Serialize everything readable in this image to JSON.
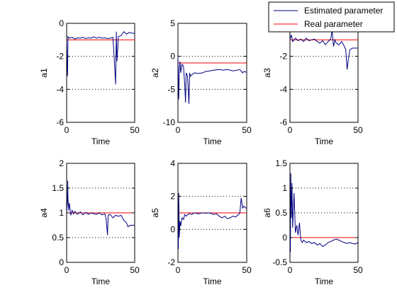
{
  "colors": {
    "estimated": "#000080",
    "real": "#ff0000",
    "grid": "#000000",
    "axes": "#000000"
  },
  "legend": {
    "position": "top-right",
    "items": [
      "Estimated parameter",
      "Real parameter"
    ]
  },
  "chart_data": [
    {
      "type": "line",
      "xlabel": "Time",
      "ylabel": "a1",
      "xlim": [
        0,
        50
      ],
      "ylim": [
        -6,
        0
      ],
      "xticks": [
        0,
        50
      ],
      "yticks": [
        -6,
        -4,
        -2,
        0
      ],
      "grid": "y-dotted",
      "real_value": -1,
      "series": [
        {
          "name": "Estimated parameter",
          "points": [
            [
              0,
              -1.1
            ],
            [
              0.4,
              -2.6
            ],
            [
              0.7,
              -3.2
            ],
            [
              1,
              -0.8
            ],
            [
              2,
              -0.9
            ],
            [
              4,
              -0.85
            ],
            [
              6,
              -0.95
            ],
            [
              8,
              -0.88
            ],
            [
              10,
              -0.9
            ],
            [
              12,
              -0.85
            ],
            [
              14,
              -0.92
            ],
            [
              16,
              -0.88
            ],
            [
              18,
              -0.9
            ],
            [
              20,
              -0.82
            ],
            [
              22,
              -0.9
            ],
            [
              24,
              -0.85
            ],
            [
              26,
              -0.9
            ],
            [
              28,
              -0.88
            ],
            [
              30,
              -0.92
            ],
            [
              32,
              -0.9
            ],
            [
              34,
              -0.85
            ],
            [
              35,
              -2.2
            ],
            [
              36,
              -3.7
            ],
            [
              36.5,
              -0.5
            ],
            [
              37,
              -2.3
            ],
            [
              38,
              -0.8
            ],
            [
              40,
              -0.75
            ],
            [
              42,
              -0.5
            ],
            [
              44,
              -0.65
            ],
            [
              46,
              -0.55
            ],
            [
              48,
              -0.6
            ],
            [
              50,
              -0.6
            ]
          ]
        },
        {
          "name": "Real parameter",
          "points": [
            [
              0,
              -1
            ],
            [
              50,
              -1
            ]
          ]
        }
      ]
    },
    {
      "type": "line",
      "xlabel": "Time",
      "ylabel": "a2",
      "xlim": [
        0,
        50
      ],
      "ylim": [
        -10,
        5
      ],
      "xticks": [
        0,
        50
      ],
      "yticks": [
        -10,
        -5,
        0,
        5
      ],
      "grid": "y-dotted",
      "real_value": -1,
      "series": [
        {
          "name": "Estimated parameter",
          "points": [
            [
              0,
              0
            ],
            [
              0.3,
              -4
            ],
            [
              0.6,
              -6.5
            ],
            [
              1,
              -2
            ],
            [
              1.5,
              -0.8
            ],
            [
              2,
              -2.5
            ],
            [
              3,
              -1.2
            ],
            [
              4,
              -1.5
            ],
            [
              5,
              -4.5
            ],
            [
              5.5,
              -7
            ],
            [
              6,
              -2.5
            ],
            [
              7,
              -3
            ],
            [
              8,
              -7.2
            ],
            [
              8.5,
              -2.5
            ],
            [
              9,
              -3
            ],
            [
              10,
              -2.8
            ],
            [
              12,
              -2.5
            ],
            [
              15,
              -2.6
            ],
            [
              18,
              -2.5
            ],
            [
              20,
              -2.3
            ],
            [
              23,
              -2.2
            ],
            [
              26,
              -2.1
            ],
            [
              30,
              -2
            ],
            [
              33,
              -2.1
            ],
            [
              36,
              -2
            ],
            [
              40,
              -2.2
            ],
            [
              43,
              -2.1
            ],
            [
              45,
              -2
            ],
            [
              47,
              -2.5
            ],
            [
              48,
              -2.3
            ],
            [
              50,
              -2.4
            ]
          ]
        },
        {
          "name": "Real parameter",
          "points": [
            [
              0,
              -1
            ],
            [
              50,
              -1
            ]
          ]
        }
      ]
    },
    {
      "type": "line",
      "xlabel": "Time",
      "ylabel": "a3",
      "xlim": [
        0,
        50
      ],
      "ylim": [
        -6,
        0
      ],
      "xticks": [
        0,
        50
      ],
      "yticks": [
        -6,
        -4,
        -2,
        0
      ],
      "grid": "y-dotted",
      "real_value": -1,
      "series": [
        {
          "name": "Estimated parameter",
          "points": [
            [
              0,
              -1
            ],
            [
              1,
              -0.7
            ],
            [
              2,
              -1.1
            ],
            [
              4,
              -0.9
            ],
            [
              6,
              -1.05
            ],
            [
              8,
              -0.95
            ],
            [
              10,
              -1.1
            ],
            [
              12,
              -0.9
            ],
            [
              14,
              -1.05
            ],
            [
              16,
              -1
            ],
            [
              18,
              -0.95
            ],
            [
              20,
              -1.1
            ],
            [
              22,
              -1.2
            ],
            [
              24,
              -1.05
            ],
            [
              26,
              -1.3
            ],
            [
              28,
              -1.1
            ],
            [
              30,
              -0.95
            ],
            [
              31,
              -0.4
            ],
            [
              32,
              -1.4
            ],
            [
              33,
              -1
            ],
            [
              34,
              -1.2
            ],
            [
              36,
              -1.3
            ],
            [
              38,
              -1.1
            ],
            [
              40,
              -1.4
            ],
            [
              41,
              -1.6
            ],
            [
              42,
              -2.8
            ],
            [
              43,
              -2.1
            ],
            [
              44,
              -1.6
            ],
            [
              46,
              -1.5
            ],
            [
              48,
              -1.5
            ],
            [
              50,
              -1.5
            ]
          ]
        },
        {
          "name": "Real parameter",
          "points": [
            [
              0,
              -1
            ],
            [
              50,
              -1
            ]
          ]
        }
      ]
    },
    {
      "type": "line",
      "xlabel": "Time",
      "ylabel": "a4",
      "xlim": [
        0,
        50
      ],
      "ylim": [
        0,
        2
      ],
      "xticks": [
        0,
        50
      ],
      "yticks": [
        0,
        0.5,
        1,
        1.5,
        2
      ],
      "grid": "y-dotted",
      "real_value": 1,
      "series": [
        {
          "name": "Estimated parameter",
          "points": [
            [
              0,
              1
            ],
            [
              0.5,
              1.2
            ],
            [
              0.8,
              1.65
            ],
            [
              1,
              1.3
            ],
            [
              1.5,
              1.05
            ],
            [
              2,
              1.2
            ],
            [
              3,
              0.95
            ],
            [
              4,
              1.05
            ],
            [
              5,
              0.98
            ],
            [
              6,
              1.03
            ],
            [
              8,
              0.97
            ],
            [
              10,
              1.02
            ],
            [
              12,
              0.96
            ],
            [
              14,
              1.01
            ],
            [
              16,
              0.97
            ],
            [
              18,
              1.0
            ],
            [
              20,
              0.98
            ],
            [
              22,
              0.97
            ],
            [
              24,
              1.0
            ],
            [
              26,
              0.96
            ],
            [
              28,
              0.98
            ],
            [
              29,
              0.88
            ],
            [
              30,
              0.55
            ],
            [
              30.5,
              0.95
            ],
            [
              32,
              0.97
            ],
            [
              34,
              0.9
            ],
            [
              36,
              0.95
            ],
            [
              38,
              0.93
            ],
            [
              40,
              0.95
            ],
            [
              42,
              0.85
            ],
            [
              44,
              0.8
            ],
            [
              45,
              0.72
            ],
            [
              47,
              0.75
            ],
            [
              50,
              0.75
            ]
          ]
        },
        {
          "name": "Real parameter",
          "points": [
            [
              0,
              1
            ],
            [
              50,
              1
            ]
          ]
        }
      ]
    },
    {
      "type": "line",
      "xlabel": "Time",
      "ylabel": "a5",
      "xlim": [
        0,
        50
      ],
      "ylim": [
        -2,
        4
      ],
      "xticks": [
        0,
        50
      ],
      "yticks": [
        -2,
        0,
        2,
        4
      ],
      "grid": "y-dotted",
      "real_value": 1,
      "series": [
        {
          "name": "Estimated parameter",
          "points": [
            [
              0,
              0
            ],
            [
              0.3,
              -1.2
            ],
            [
              0.6,
              2.2
            ],
            [
              1,
              -0.5
            ],
            [
              1.5,
              0.5
            ],
            [
              2,
              0.2
            ],
            [
              3,
              0.7
            ],
            [
              4,
              0.6
            ],
            [
              5,
              0.9
            ],
            [
              6,
              0.8
            ],
            [
              8,
              0.95
            ],
            [
              10,
              0.9
            ],
            [
              12,
              1.0
            ],
            [
              15,
              0.95
            ],
            [
              18,
              1.0
            ],
            [
              20,
              0.98
            ],
            [
              23,
              1.0
            ],
            [
              26,
              0.9
            ],
            [
              28,
              0.95
            ],
            [
              30,
              0.8
            ],
            [
              32,
              0.7
            ],
            [
              34,
              0.8
            ],
            [
              36,
              0.65
            ],
            [
              38,
              0.7
            ],
            [
              40,
              0.8
            ],
            [
              42,
              0.75
            ],
            [
              44,
              0.9
            ],
            [
              45,
              1.0
            ],
            [
              46,
              1.9
            ],
            [
              47,
              1.3
            ],
            [
              48,
              1.4
            ],
            [
              49,
              1.3
            ],
            [
              50,
              1.3
            ]
          ]
        },
        {
          "name": "Real parameter",
          "points": [
            [
              0,
              1
            ],
            [
              50,
              1
            ]
          ]
        }
      ]
    },
    {
      "type": "line",
      "xlabel": "Time",
      "ylabel": "a6",
      "xlim": [
        0,
        50
      ],
      "ylim": [
        -0.5,
        1.5
      ],
      "xticks": [
        0,
        50
      ],
      "yticks": [
        -0.5,
        0,
        0.5,
        1,
        1.5
      ],
      "grid": "y-dotted",
      "real_value": 0,
      "series": [
        {
          "name": "Estimated parameter",
          "points": [
            [
              0,
              0
            ],
            [
              0.3,
              -0.3
            ],
            [
              0.6,
              1.3
            ],
            [
              1,
              0.4
            ],
            [
              1.5,
              1.1
            ],
            [
              2,
              0.2
            ],
            [
              3,
              0.9
            ],
            [
              4,
              0.1
            ],
            [
              5,
              0.25
            ],
            [
              6,
              0.05
            ],
            [
              7,
              0.3
            ],
            [
              8,
              -0.05
            ],
            [
              9,
              -0.1
            ],
            [
              10,
              -0.05
            ],
            [
              12,
              -0.1
            ],
            [
              14,
              -0.08
            ],
            [
              16,
              -0.12
            ],
            [
              18,
              -0.1
            ],
            [
              20,
              -0.15
            ],
            [
              22,
              -0.12
            ],
            [
              24,
              -0.18
            ],
            [
              26,
              -0.15
            ],
            [
              28,
              -0.1
            ],
            [
              30,
              -0.08
            ],
            [
              32,
              -0.05
            ],
            [
              34,
              -0.03
            ],
            [
              36,
              -0.05
            ],
            [
              38,
              -0.08
            ],
            [
              40,
              -0.1
            ],
            [
              42,
              -0.12
            ],
            [
              44,
              -0.1
            ],
            [
              46,
              -0.12
            ],
            [
              48,
              -0.13
            ],
            [
              50,
              -0.1
            ]
          ]
        },
        {
          "name": "Real parameter",
          "points": [
            [
              0,
              0
            ],
            [
              50,
              0
            ]
          ]
        }
      ]
    }
  ]
}
